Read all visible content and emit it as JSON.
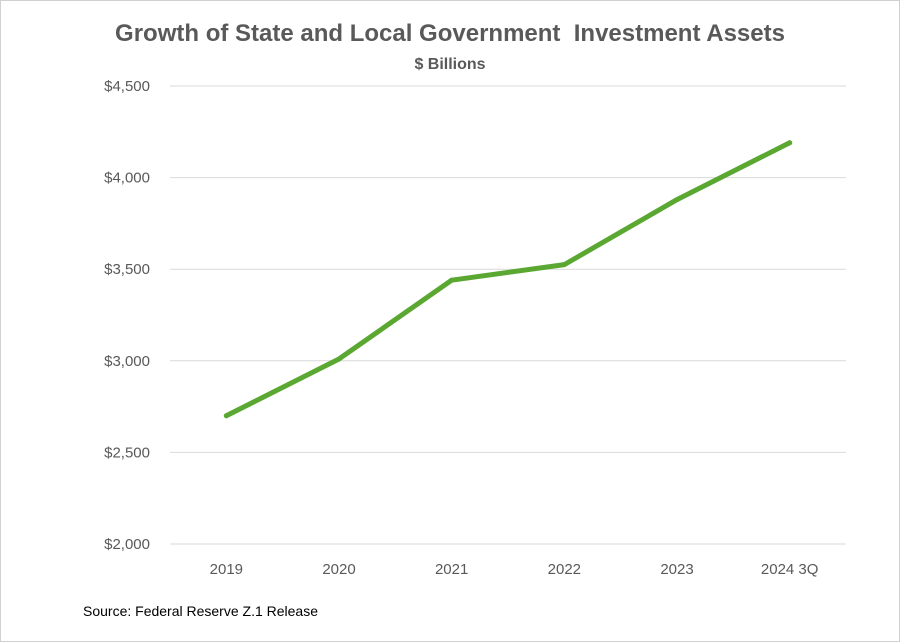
{
  "chart_data": {
    "type": "line",
    "title": "Growth of State and Local Government  Investment Assets",
    "subtitle": "$ Billions",
    "source": "Source: Federal Reserve Z.1 Release",
    "categories": [
      "2019",
      "2020",
      "2021",
      "2022",
      "2023",
      "2024 3Q"
    ],
    "series": [
      {
        "values": [
          2700,
          3010,
          3440,
          3525,
          3880,
          4190
        ],
        "color": "#5aa832"
      }
    ],
    "y_ticks": [
      2000,
      2500,
      3000,
      3500,
      4000,
      4500
    ],
    "y_tick_labels": [
      "$2,000",
      "$2,500",
      "$3,000",
      "$3,500",
      "$4,000",
      "$4,500"
    ],
    "ylim": [
      2000,
      4500
    ],
    "grid": true,
    "legend": "none",
    "colors": {
      "gridline": "#d9d9d9",
      "text": "#595959"
    }
  }
}
